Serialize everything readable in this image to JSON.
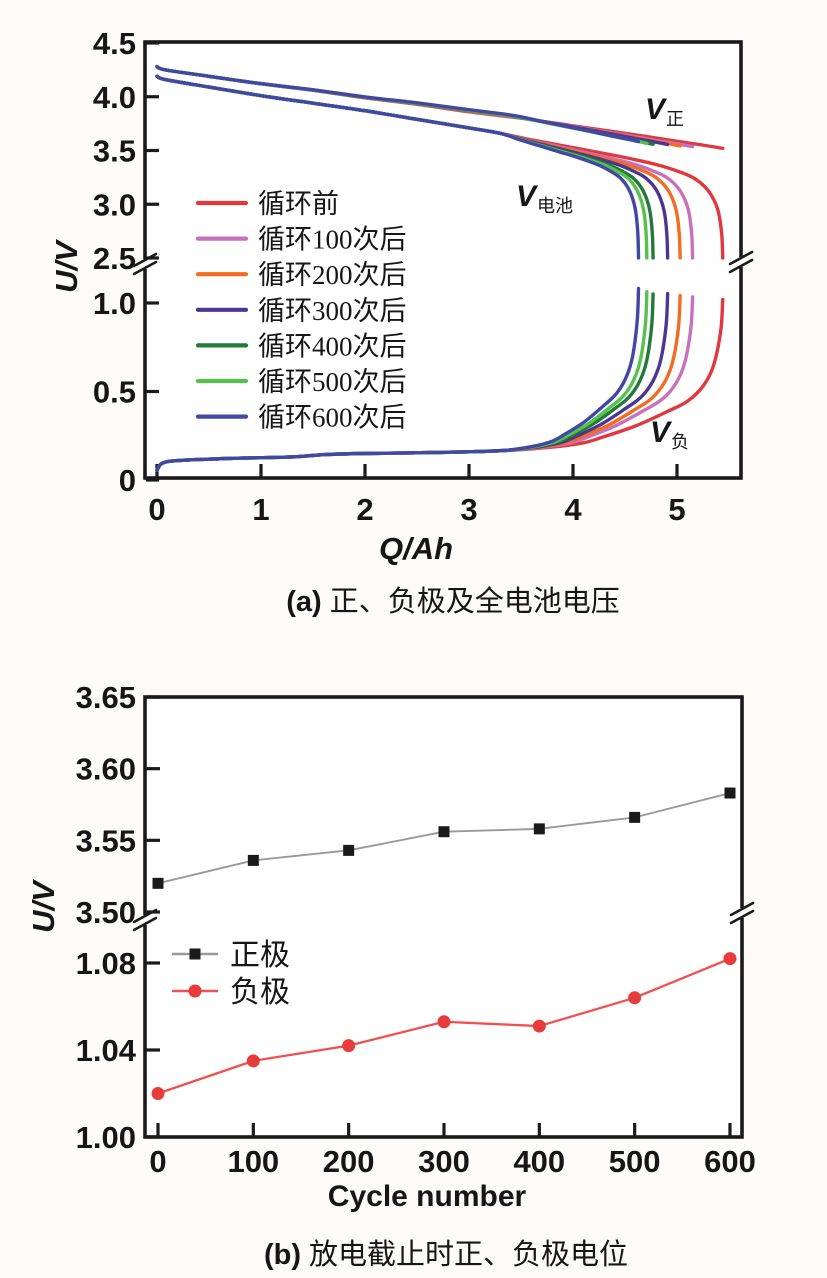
{
  "page": {
    "background": "#fcfbf8",
    "text_color": "#161616",
    "axis_color": "#1a1a1a"
  },
  "chart_data": [
    {
      "panel": "a",
      "type": "line",
      "xlabel": "Q/Ah",
      "ylabel": "U/V",
      "caption_prefix": "(a)",
      "caption_text": "正、负极及全电池电压",
      "x_range": [
        0,
        5.6
      ],
      "xticks": [
        "0",
        "1",
        "2",
        "3",
        "4",
        "5"
      ],
      "y_axis_break": {
        "upper_range": [
          2.5,
          4.5
        ],
        "lower_range": [
          0,
          1.1
        ]
      },
      "yticks_upper": [
        "4.5",
        "4.0",
        "3.5",
        "3.0",
        "2.5"
      ],
      "yticks_lower": [
        "1.0",
        "0.5",
        "0"
      ],
      "annotations": [
        {
          "main": "V",
          "sub": "正"
        },
        {
          "main": "V",
          "sub": "电池"
        },
        {
          "main": "V",
          "sub": "负"
        }
      ],
      "series": [
        {
          "label": "循环前",
          "color": "#e0383e",
          "q_end": 5.44,
          "v_neg_end": 1.02,
          "v_pos_end": 3.52
        },
        {
          "label": "循环100次后",
          "color": "#c970bc",
          "q_end": 5.15,
          "v_neg_end": 1.035,
          "v_pos_end": 3.536
        },
        {
          "label": "循环200次后",
          "color": "#f26d21",
          "q_end": 5.03,
          "v_neg_end": 1.042,
          "v_pos_end": 3.543
        },
        {
          "label": "循环300次后",
          "color": "#4b3793",
          "q_end": 4.91,
          "v_neg_end": 1.053,
          "v_pos_end": 3.556
        },
        {
          "label": "循环400次后",
          "color": "#217a38",
          "q_end": 4.77,
          "v_neg_end": 1.051,
          "v_pos_end": 3.558
        },
        {
          "label": "循环500次后",
          "color": "#57c04f",
          "q_end": 4.71,
          "v_neg_end": 1.064,
          "v_pos_end": 3.566
        },
        {
          "label": "循环600次后",
          "color": "#4147a5",
          "q_end": 4.63,
          "v_neg_end": 1.082,
          "v_pos_end": 3.583
        }
      ],
      "base_q_end": 5.44,
      "q_split": 3.3,
      "base_curves": {
        "v_pos": [
          [
            0,
            4.28
          ],
          [
            0.08,
            4.25
          ],
          [
            0.5,
            4.19
          ],
          [
            1,
            4.12
          ],
          [
            1.5,
            4.06
          ],
          [
            2,
            3.99
          ],
          [
            2.5,
            3.93
          ],
          [
            3,
            3.86
          ],
          [
            3.5,
            3.8
          ],
          [
            4,
            3.73
          ],
          [
            4.5,
            3.66
          ],
          [
            5,
            3.585
          ],
          [
            5.25,
            3.55
          ],
          [
            5.44,
            3.52
          ]
        ],
        "v_bat": [
          [
            0,
            4.19
          ],
          [
            0.08,
            4.16
          ],
          [
            0.5,
            4.09
          ],
          [
            1,
            4.01
          ],
          [
            1.5,
            3.94
          ],
          [
            2,
            3.87
          ],
          [
            2.5,
            3.79
          ],
          [
            3,
            3.71
          ],
          [
            3.3,
            3.66
          ],
          [
            3.6,
            3.6
          ],
          [
            3.9,
            3.545
          ],
          [
            4.2,
            3.49
          ],
          [
            4.5,
            3.435
          ],
          [
            4.8,
            3.37
          ],
          [
            5.0,
            3.31
          ],
          [
            5.15,
            3.25
          ],
          [
            5.27,
            3.16
          ],
          [
            5.35,
            3.05
          ],
          [
            5.4,
            2.92
          ],
          [
            5.43,
            2.72
          ],
          [
            5.44,
            2.5
          ]
        ],
        "v_neg": [
          [
            0,
            0.055
          ],
          [
            0.05,
            0.095
          ],
          [
            0.2,
            0.11
          ],
          [
            0.6,
            0.12
          ],
          [
            1.0,
            0.126
          ],
          [
            1.35,
            0.132
          ],
          [
            1.6,
            0.143
          ],
          [
            1.9,
            0.149
          ],
          [
            2.4,
            0.153
          ],
          [
            3.0,
            0.159
          ],
          [
            3.4,
            0.168
          ],
          [
            3.8,
            0.186
          ],
          [
            4.1,
            0.21
          ],
          [
            4.3,
            0.245
          ],
          [
            4.6,
            0.305
          ],
          [
            4.9,
            0.385
          ],
          [
            5.1,
            0.445
          ],
          [
            5.25,
            0.53
          ],
          [
            5.35,
            0.645
          ],
          [
            5.42,
            0.84
          ],
          [
            5.44,
            1.02
          ]
        ]
      }
    },
    {
      "panel": "b",
      "type": "line",
      "xlabel": "Cycle number",
      "ylabel": "U/V",
      "caption_prefix": "(b)",
      "caption_text": "放电截止时正、负极电位",
      "x": [
        0,
        100,
        200,
        300,
        400,
        500,
        600
      ],
      "xticks": [
        "0",
        "100",
        "200",
        "300",
        "400",
        "500",
        "600"
      ],
      "y_axis_break": {
        "upper_range": [
          3.5,
          3.65
        ],
        "lower_range": [
          1.0,
          1.08
        ]
      },
      "yticks_upper": [
        "3.65",
        "3.60",
        "3.55",
        "3.50"
      ],
      "yticks_lower": [
        "1.08",
        "1.04",
        "1.00"
      ],
      "series": [
        {
          "name": "正极",
          "marker": "square",
          "marker_color": "#1a1a1a",
          "line_color": "#999999",
          "axis": "upper",
          "values": [
            3.52,
            3.536,
            3.543,
            3.556,
            3.558,
            3.566,
            3.583
          ]
        },
        {
          "name": "负极",
          "marker": "circle",
          "marker_color": "#e63c3c",
          "line_color": "#f05050",
          "axis": "lower",
          "values": [
            1.02,
            1.035,
            1.042,
            1.053,
            1.051,
            1.064,
            1.082
          ]
        }
      ]
    }
  ]
}
